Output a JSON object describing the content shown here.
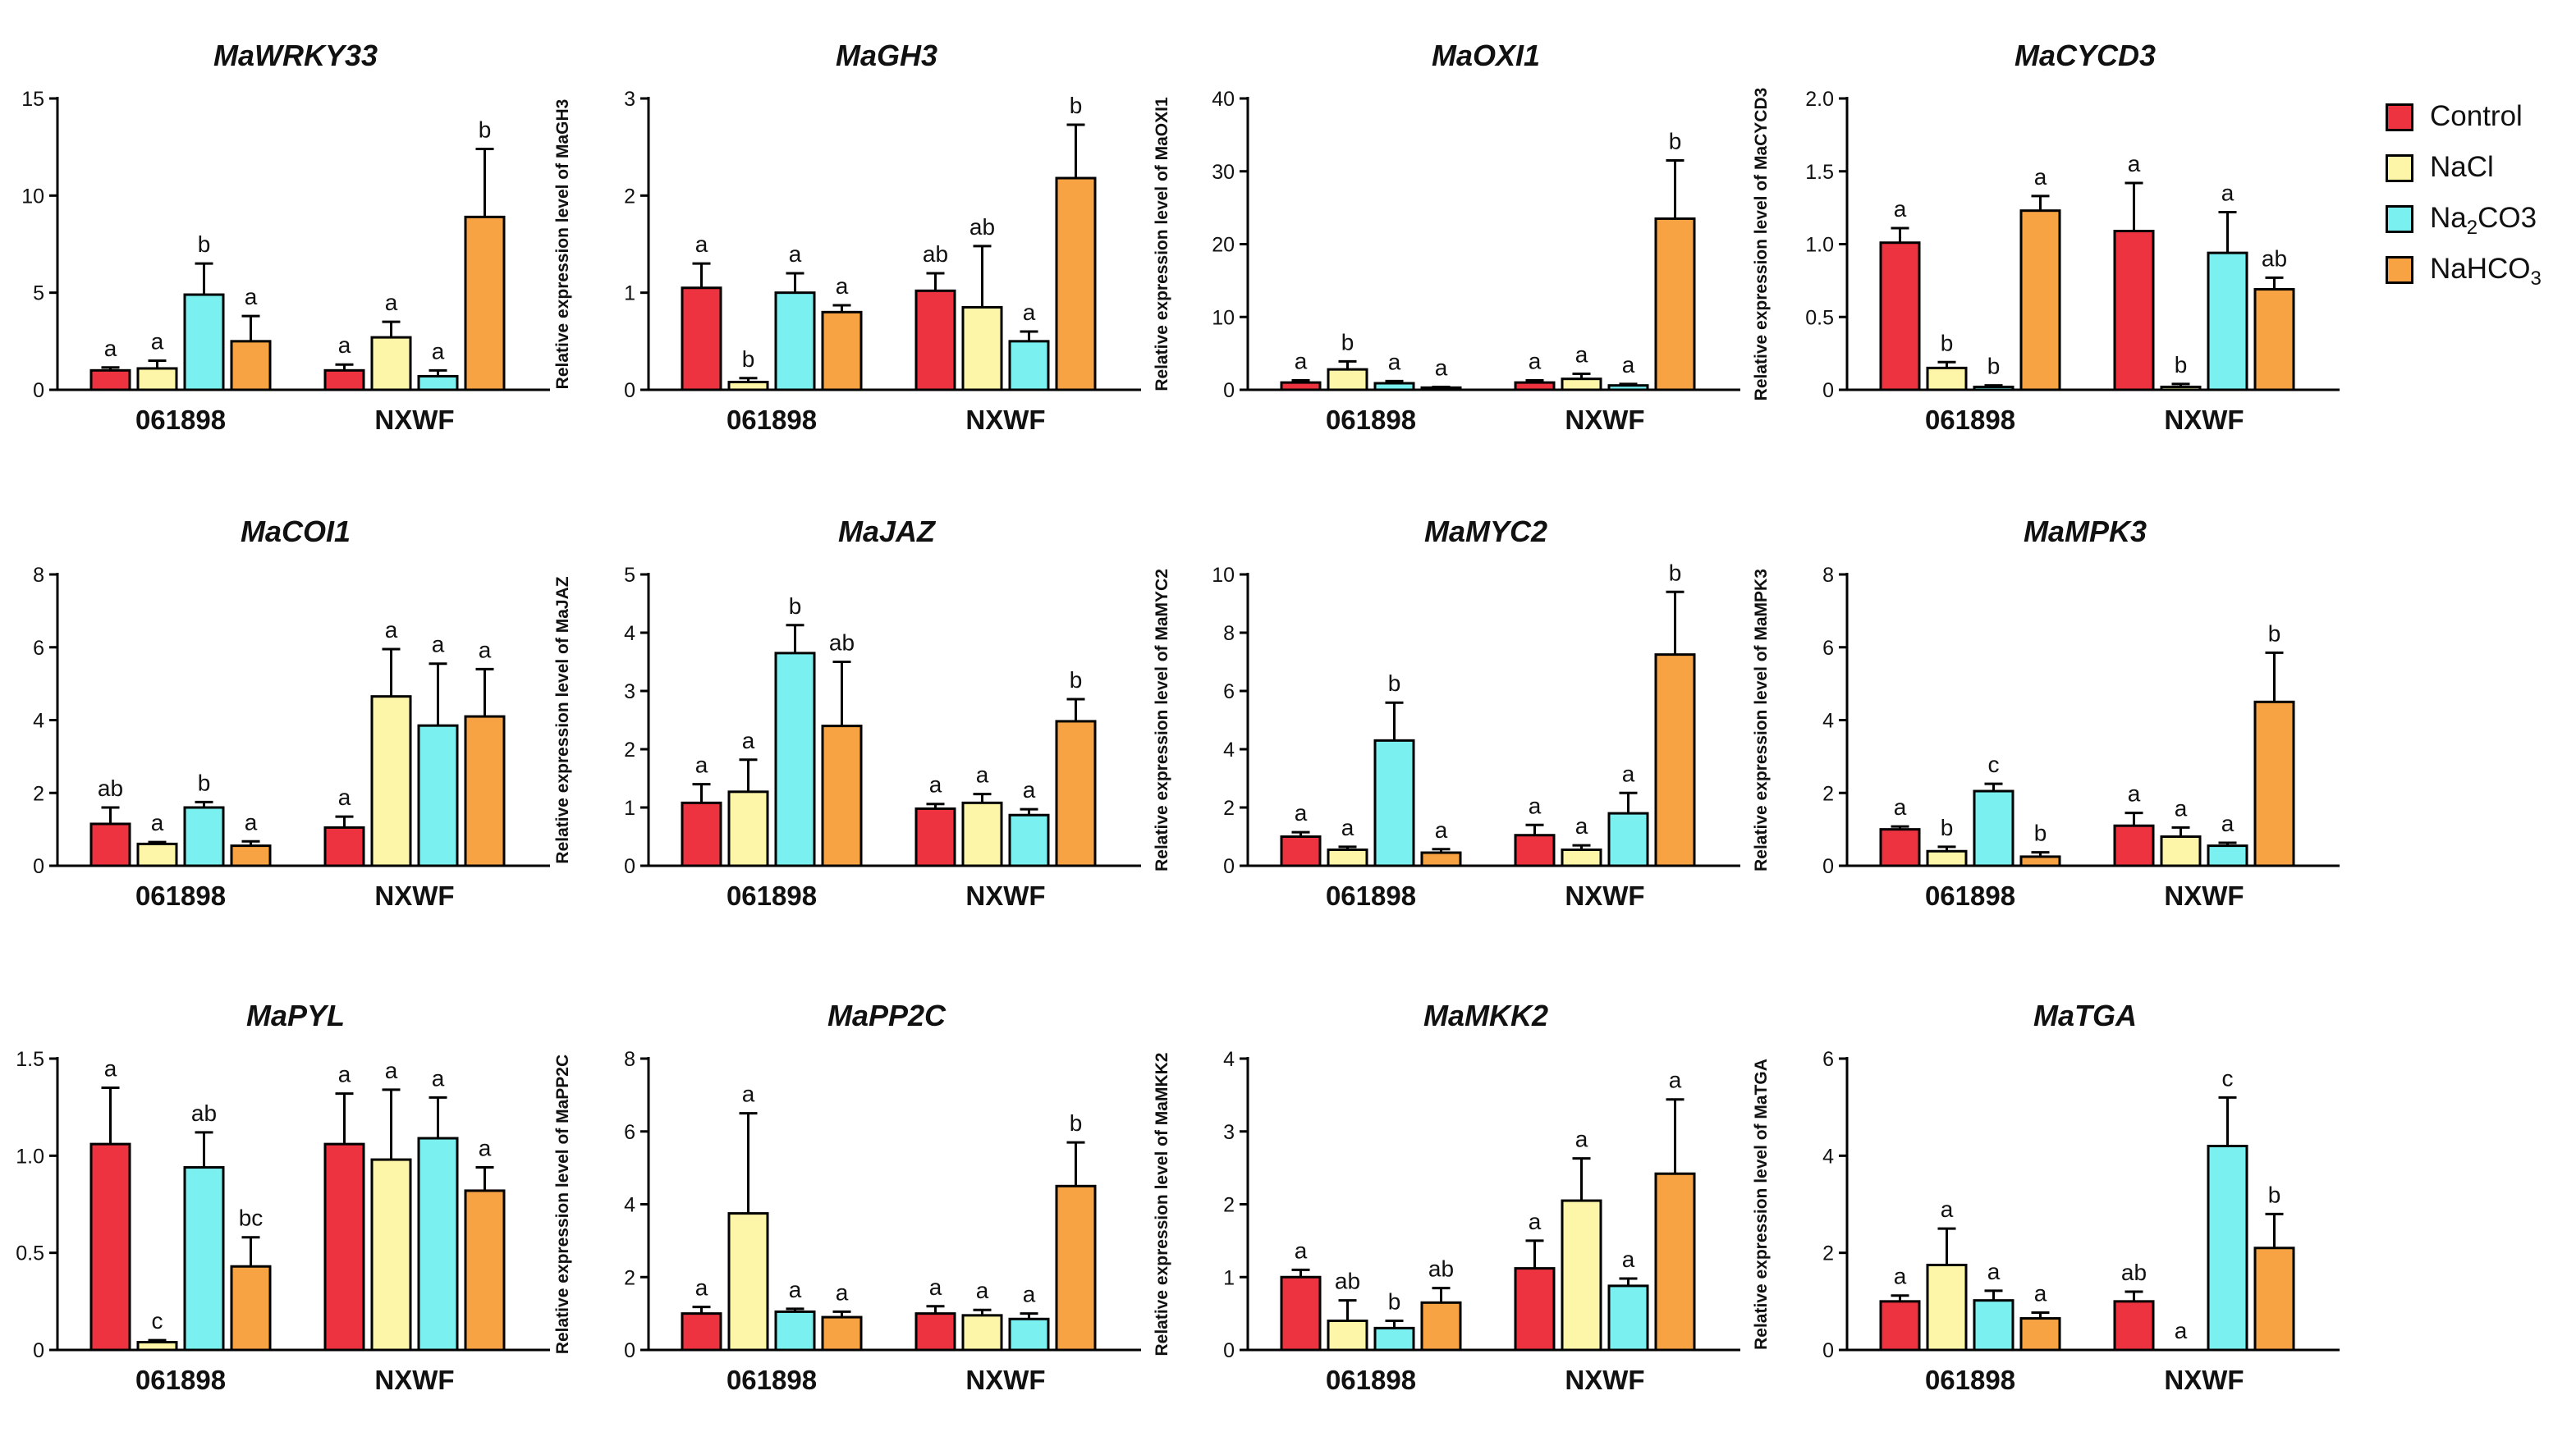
{
  "chart_data": [
    {
      "type": "bar",
      "title": "MaWRKY33",
      "ylabel": "Relative expression level of MaWRKY33",
      "ylim": [
        0,
        15
      ],
      "yticks": [
        0,
        5,
        10,
        15
      ],
      "categories": [
        "061898",
        "NXWF"
      ],
      "series": [
        {
          "name": "Control",
          "values": [
            1.0,
            1.0
          ],
          "errors": [
            0.15,
            0.3
          ],
          "letters": [
            "a",
            "a"
          ]
        },
        {
          "name": "NaCl",
          "values": [
            1.1,
            2.7
          ],
          "errors": [
            0.4,
            0.8
          ],
          "letters": [
            "a",
            "a"
          ]
        },
        {
          "name": "Na2CO3",
          "values": [
            4.9,
            0.7
          ],
          "errors": [
            1.6,
            0.3
          ],
          "letters": [
            "b",
            "a"
          ]
        },
        {
          "name": "NaHCO3",
          "values": [
            2.5,
            8.9
          ],
          "errors": [
            1.3,
            3.5
          ],
          "letters": [
            "a",
            "b"
          ]
        }
      ]
    },
    {
      "type": "bar",
      "title": "MaGH3",
      "ylabel": "Relative expression level of MaGH3",
      "ylim": [
        0,
        3
      ],
      "yticks": [
        0,
        1,
        2,
        3
      ],
      "categories": [
        "061898",
        "NXWF"
      ],
      "series": [
        {
          "name": "Control",
          "values": [
            1.05,
            1.02
          ],
          "errors": [
            0.25,
            0.18
          ],
          "letters": [
            "a",
            "ab"
          ]
        },
        {
          "name": "NaCl",
          "values": [
            0.08,
            0.85
          ],
          "errors": [
            0.04,
            0.63
          ],
          "letters": [
            "b",
            "ab"
          ]
        },
        {
          "name": "Na2CO3",
          "values": [
            1.0,
            0.5
          ],
          "errors": [
            0.2,
            0.1
          ],
          "letters": [
            "a",
            "a"
          ]
        },
        {
          "name": "NaHCO3",
          "values": [
            0.8,
            2.18
          ],
          "errors": [
            0.07,
            0.55
          ],
          "letters": [
            "a",
            "b"
          ]
        }
      ]
    },
    {
      "type": "bar",
      "title": "MaOXI1",
      "ylabel": "Relative expression level of MaOXI1",
      "ylim": [
        0,
        40
      ],
      "yticks": [
        0,
        10,
        20,
        30,
        40
      ],
      "categories": [
        "061898",
        "NXWF"
      ],
      "series": [
        {
          "name": "Control",
          "values": [
            1.0,
            1.0
          ],
          "errors": [
            0.3,
            0.3
          ],
          "letters": [
            "a",
            "a"
          ]
        },
        {
          "name": "NaCl",
          "values": [
            2.8,
            1.5
          ],
          "errors": [
            1.1,
            0.7
          ],
          "letters": [
            "b",
            "a"
          ]
        },
        {
          "name": "Na2CO3",
          "values": [
            0.9,
            0.6
          ],
          "errors": [
            0.3,
            0.2
          ],
          "letters": [
            "a",
            "a"
          ]
        },
        {
          "name": "NaHCO3",
          "values": [
            0.3,
            23.5
          ],
          "errors": [
            0.1,
            8.0
          ],
          "letters": [
            "a",
            "b"
          ]
        }
      ]
    },
    {
      "type": "bar",
      "title": "MaCYCD3",
      "ylabel": "Relative expression level of MaCYCD3",
      "ylim": [
        0,
        2.0
      ],
      "yticks": [
        0,
        0.5,
        1.0,
        1.5,
        2.0
      ],
      "categories": [
        "061898",
        "NXWF"
      ],
      "series": [
        {
          "name": "Control",
          "values": [
            1.01,
            1.09
          ],
          "errors": [
            0.1,
            0.33
          ],
          "letters": [
            "a",
            "a"
          ]
        },
        {
          "name": "NaCl",
          "values": [
            0.15,
            0.02
          ],
          "errors": [
            0.04,
            0.02
          ],
          "letters": [
            "b",
            "b"
          ]
        },
        {
          "name": "Na2CO3",
          "values": [
            0.02,
            0.94
          ],
          "errors": [
            0.01,
            0.28
          ],
          "letters": [
            "b",
            "a"
          ]
        },
        {
          "name": "NaHCO3",
          "values": [
            1.23,
            0.69
          ],
          "errors": [
            0.1,
            0.08
          ],
          "letters": [
            "a",
            "ab"
          ]
        }
      ]
    },
    {
      "type": "bar",
      "title": "MaCOI1",
      "ylabel": "Relative expression level of MaCOI1",
      "ylim": [
        0,
        8
      ],
      "yticks": [
        0,
        2,
        4,
        6,
        8
      ],
      "categories": [
        "061898",
        "NXWF"
      ],
      "series": [
        {
          "name": "Control",
          "values": [
            1.15,
            1.05
          ],
          "errors": [
            0.45,
            0.3
          ],
          "letters": [
            "ab",
            "a"
          ]
        },
        {
          "name": "NaCl",
          "values": [
            0.6,
            4.65
          ],
          "errors": [
            0.05,
            1.3
          ],
          "letters": [
            "a",
            "a"
          ]
        },
        {
          "name": "Na2CO3",
          "values": [
            1.6,
            3.85
          ],
          "errors": [
            0.15,
            1.7
          ],
          "letters": [
            "b",
            "a"
          ]
        },
        {
          "name": "NaHCO3",
          "values": [
            0.55,
            4.1
          ],
          "errors": [
            0.12,
            1.3
          ],
          "letters": [
            "a",
            "a"
          ]
        }
      ]
    },
    {
      "type": "bar",
      "title": "MaJAZ",
      "ylabel": "Relative expression level of MaJAZ",
      "ylim": [
        0,
        5
      ],
      "yticks": [
        0,
        1,
        2,
        3,
        4,
        5
      ],
      "categories": [
        "061898",
        "NXWF"
      ],
      "series": [
        {
          "name": "Control",
          "values": [
            1.08,
            0.98
          ],
          "errors": [
            0.32,
            0.08
          ],
          "letters": [
            "a",
            "a"
          ]
        },
        {
          "name": "NaCl",
          "values": [
            1.27,
            1.08
          ],
          "errors": [
            0.55,
            0.15
          ],
          "letters": [
            "a",
            "a"
          ]
        },
        {
          "name": "Na2CO3",
          "values": [
            3.65,
            0.87
          ],
          "errors": [
            0.48,
            0.1
          ],
          "letters": [
            "b",
            "a"
          ]
        },
        {
          "name": "NaHCO3",
          "values": [
            2.4,
            2.48
          ],
          "errors": [
            1.1,
            0.38
          ],
          "letters": [
            "ab",
            "b"
          ]
        }
      ]
    },
    {
      "type": "bar",
      "title": "MaMYC2",
      "ylabel": "Relative expression level of MaMYC2",
      "ylim": [
        0,
        10
      ],
      "yticks": [
        0,
        2,
        4,
        6,
        8,
        10
      ],
      "categories": [
        "061898",
        "NXWF"
      ],
      "series": [
        {
          "name": "Control",
          "values": [
            1.0,
            1.05
          ],
          "errors": [
            0.15,
            0.35
          ],
          "letters": [
            "a",
            "a"
          ]
        },
        {
          "name": "NaCl",
          "values": [
            0.55,
            0.55
          ],
          "errors": [
            0.1,
            0.15
          ],
          "letters": [
            "a",
            "a"
          ]
        },
        {
          "name": "Na2CO3",
          "values": [
            4.3,
            1.8
          ],
          "errors": [
            1.3,
            0.7
          ],
          "letters": [
            "b",
            "a"
          ]
        },
        {
          "name": "NaHCO3",
          "values": [
            0.45,
            7.25
          ],
          "errors": [
            0.12,
            2.15
          ],
          "letters": [
            "a",
            "b"
          ]
        }
      ]
    },
    {
      "type": "bar",
      "title": "MaMPK3",
      "ylabel": "Relative expression level of MaMPK3",
      "ylim": [
        0,
        8
      ],
      "yticks": [
        0,
        2,
        4,
        6,
        8
      ],
      "categories": [
        "061898",
        "NXWF"
      ],
      "series": [
        {
          "name": "Control",
          "values": [
            1.0,
            1.1
          ],
          "errors": [
            0.08,
            0.35
          ],
          "letters": [
            "a",
            "a"
          ]
        },
        {
          "name": "NaCl",
          "values": [
            0.4,
            0.8
          ],
          "errors": [
            0.12,
            0.25
          ],
          "letters": [
            "b",
            "a"
          ]
        },
        {
          "name": "Na2CO3",
          "values": [
            2.05,
            0.55
          ],
          "errors": [
            0.2,
            0.08
          ],
          "letters": [
            "c",
            "a"
          ]
        },
        {
          "name": "NaHCO3",
          "values": [
            0.25,
            4.5
          ],
          "errors": [
            0.12,
            1.35
          ],
          "letters": [
            "b",
            "b"
          ]
        }
      ]
    },
    {
      "type": "bar",
      "title": "MaPYL",
      "ylabel": "Relative expression level of MaPYL",
      "ylim": [
        0,
        1.5
      ],
      "yticks": [
        0,
        0.5,
        1.0,
        1.5
      ],
      "categories": [
        "061898",
        "NXWF"
      ],
      "series": [
        {
          "name": "Control",
          "values": [
            1.06,
            1.06
          ],
          "errors": [
            0.29,
            0.26
          ],
          "letters": [
            "a",
            "a"
          ]
        },
        {
          "name": "NaCl",
          "values": [
            0.04,
            0.98
          ],
          "errors": [
            0.01,
            0.36
          ],
          "letters": [
            "c",
            "a"
          ]
        },
        {
          "name": "Na2CO3",
          "values": [
            0.94,
            1.09
          ],
          "errors": [
            0.18,
            0.21
          ],
          "letters": [
            "ab",
            "a"
          ]
        },
        {
          "name": "NaHCO3",
          "values": [
            0.43,
            0.82
          ],
          "errors": [
            0.15,
            0.12
          ],
          "letters": [
            "bc",
            "a"
          ]
        }
      ]
    },
    {
      "type": "bar",
      "title": "MaPP2C",
      "ylabel": "Relative expression level of MaPP2C",
      "ylim": [
        0,
        8
      ],
      "yticks": [
        0,
        2,
        4,
        6,
        8
      ],
      "categories": [
        "061898",
        "NXWF"
      ],
      "series": [
        {
          "name": "Control",
          "values": [
            1.0,
            1.0
          ],
          "errors": [
            0.18,
            0.2
          ],
          "letters": [
            "a",
            "a"
          ]
        },
        {
          "name": "NaCl",
          "values": [
            3.75,
            0.95
          ],
          "errors": [
            2.75,
            0.15
          ],
          "letters": [
            "a",
            "a"
          ]
        },
        {
          "name": "Na2CO3",
          "values": [
            1.05,
            0.85
          ],
          "errors": [
            0.08,
            0.15
          ],
          "letters": [
            "a",
            "a"
          ]
        },
        {
          "name": "NaHCO3",
          "values": [
            0.9,
            4.5
          ],
          "errors": [
            0.15,
            1.2
          ],
          "letters": [
            "a",
            "b"
          ]
        }
      ]
    },
    {
      "type": "bar",
      "title": "MaMKK2",
      "ylabel": "Relative expression level of MaMKK2",
      "ylim": [
        0,
        4
      ],
      "yticks": [
        0,
        1,
        2,
        3,
        4
      ],
      "categories": [
        "061898",
        "NXWF"
      ],
      "series": [
        {
          "name": "Control",
          "values": [
            1.0,
            1.12
          ],
          "errors": [
            0.1,
            0.38
          ],
          "letters": [
            "a",
            "a"
          ]
        },
        {
          "name": "NaCl",
          "values": [
            0.4,
            2.05
          ],
          "errors": [
            0.28,
            0.58
          ],
          "letters": [
            "ab",
            "a"
          ]
        },
        {
          "name": "Na2CO3",
          "values": [
            0.3,
            0.88
          ],
          "errors": [
            0.1,
            0.1
          ],
          "letters": [
            "b",
            "a"
          ]
        },
        {
          "name": "NaHCO3",
          "values": [
            0.65,
            2.42
          ],
          "errors": [
            0.2,
            1.02
          ],
          "letters": [
            "ab",
            "a"
          ]
        }
      ]
    },
    {
      "type": "bar",
      "title": "MaTGA",
      "ylabel": "Relative expression level of MaTGA",
      "ylim": [
        0,
        6
      ],
      "yticks": [
        0,
        2,
        4,
        6
      ],
      "categories": [
        "061898",
        "NXWF"
      ],
      "series": [
        {
          "name": "Control",
          "values": [
            1.0,
            1.0
          ],
          "errors": [
            0.12,
            0.2
          ],
          "letters": [
            "a",
            "ab"
          ]
        },
        {
          "name": "NaCl",
          "values": [
            1.75,
            0.0
          ],
          "errors": [
            0.75,
            0.0
          ],
          "letters": [
            "a",
            "a"
          ]
        },
        {
          "name": "Na2CO3",
          "values": [
            1.02,
            4.2
          ],
          "errors": [
            0.2,
            1.0
          ],
          "letters": [
            "a",
            "c"
          ]
        },
        {
          "name": "NaHCO3",
          "values": [
            0.65,
            2.1
          ],
          "errors": [
            0.12,
            0.7
          ],
          "letters": [
            "a",
            "b"
          ]
        }
      ]
    }
  ],
  "legend": {
    "items": [
      {
        "name": "Control",
        "label": "Control",
        "label_main": "Control",
        "label_sub": "",
        "label_tail": "",
        "color": "#ee3340"
      },
      {
        "name": "NaCl",
        "label": "NaCl",
        "label_main": "NaCl",
        "label_sub": "",
        "label_tail": "",
        "color": "#fdf6a8"
      },
      {
        "name": "Na2CO3",
        "label": "Na2CO3",
        "label_main": "Na",
        "label_sub": "2",
        "label_tail": "CO3",
        "color": "#7af0f0"
      },
      {
        "name": "NaHCO3",
        "label": "NaHCO3",
        "label_main": "NaHCO",
        "label_sub": "3",
        "label_tail": "",
        "color": "#f7a343"
      }
    ]
  }
}
